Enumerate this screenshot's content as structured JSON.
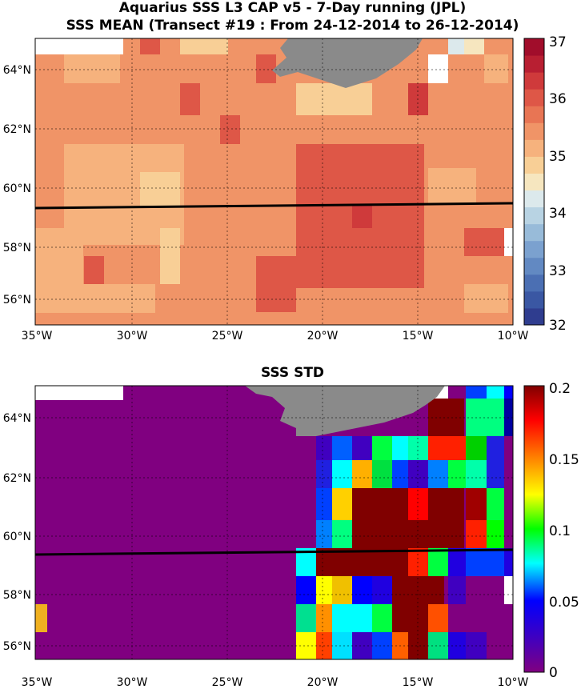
{
  "top_panel": {
    "title_line1": "Aquarius SSS L3 CAP v5 - 7-Day running (JPL)",
    "title_line2": "SSS MEAN (Transect #19 : From 24-12-2014 to 26-12-2014)",
    "colorbar_ticks": [
      "37",
      "36",
      "35",
      "34",
      "33",
      "32"
    ],
    "colorbar_range": [
      32,
      37
    ],
    "colormap": [
      "#2f3d8f",
      "#3a57a3",
      "#4b6fb3",
      "#6289c2",
      "#7ba1cf",
      "#98bbd9",
      "#b8d3e3",
      "#dce9ec",
      "#f6e6bf",
      "#f8cf96",
      "#f6b27d",
      "#f09467",
      "#e87554",
      "#de5747",
      "#cf3a3b",
      "#b81f32",
      "#a10d2b"
    ]
  },
  "bottom_panel": {
    "title": "SSS STD",
    "colorbar_ticks": [
      "0.2",
      "0.15",
      "0.1",
      "0.05",
      "0"
    ],
    "colorbar_range": [
      0,
      0.2
    ]
  },
  "axes": {
    "lon_ticks": [
      "35°W",
      "30°W",
      "25°W",
      "20°W",
      "15°W",
      "10°W"
    ],
    "lat_ticks": [
      "64°N",
      "62°N",
      "60°N",
      "58°N",
      "56°N"
    ]
  },
  "colors": {
    "land": "#8a8a8a",
    "transect": "#000000",
    "no_data": "#ffffff"
  }
}
